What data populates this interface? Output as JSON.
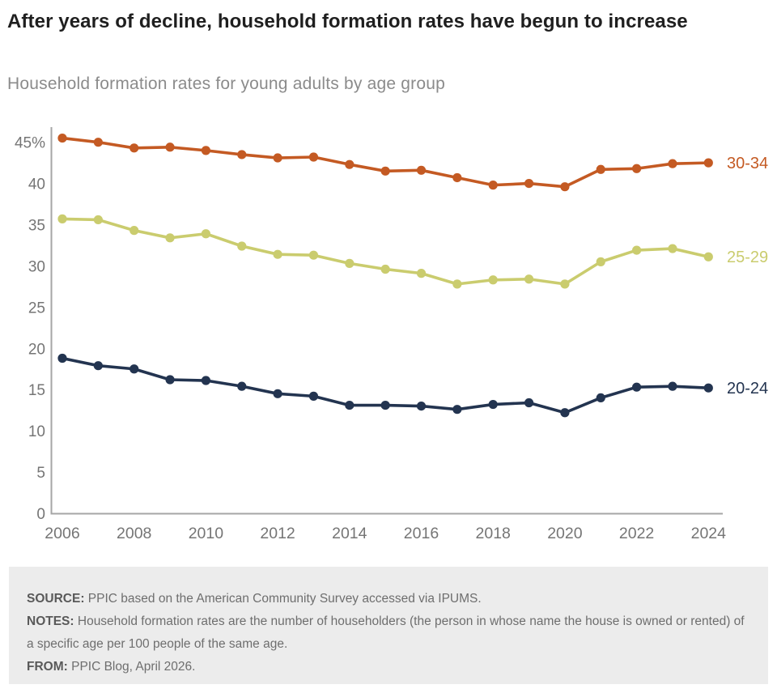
{
  "header": {
    "title": "After years of decline, household formation rates have begun to increase",
    "subtitle": "Household formation rates for young adults by age group"
  },
  "chart_data": {
    "type": "line",
    "x": [
      2006,
      2007,
      2008,
      2009,
      2010,
      2011,
      2012,
      2013,
      2014,
      2015,
      2016,
      2017,
      2018,
      2019,
      2020,
      2021,
      2022,
      2023,
      2024
    ],
    "x_tick_labels": [
      "2006",
      "2008",
      "2010",
      "2012",
      "2014",
      "2016",
      "2018",
      "2020",
      "2022",
      "2024"
    ],
    "y_ticks": [
      {
        "value": 45,
        "label": "45%"
      },
      {
        "value": 40,
        "label": "40"
      },
      {
        "value": 35,
        "label": "35"
      },
      {
        "value": 30,
        "label": "30"
      },
      {
        "value": 25,
        "label": "25"
      },
      {
        "value": 20,
        "label": "20"
      },
      {
        "value": 15,
        "label": "15"
      },
      {
        "value": 10,
        "label": "10"
      },
      {
        "value": 5,
        "label": "5"
      },
      {
        "value": 0,
        "label": "0"
      }
    ],
    "ylim": [
      0,
      45
    ],
    "grid": false,
    "legend_position": "line-end-labels",
    "series": [
      {
        "name": "30-34",
        "color": "#c45a23",
        "values": [
          45.5,
          45.0,
          44.3,
          44.4,
          44.0,
          43.5,
          43.1,
          43.2,
          42.3,
          41.5,
          41.6,
          40.7,
          39.8,
          40.0,
          39.6,
          41.7,
          41.8,
          42.4,
          42.5
        ]
      },
      {
        "name": "25-29",
        "color": "#cacc6e",
        "values": [
          35.7,
          35.6,
          34.3,
          33.4,
          33.9,
          32.4,
          31.4,
          31.3,
          30.3,
          29.6,
          29.1,
          27.8,
          28.3,
          28.4,
          27.8,
          30.5,
          31.9,
          32.1,
          31.1
        ]
      },
      {
        "name": "20-24",
        "color": "#233450",
        "values": [
          18.8,
          17.9,
          17.5,
          16.2,
          16.1,
          15.4,
          14.5,
          14.2,
          13.1,
          13.1,
          13.0,
          12.6,
          13.2,
          13.4,
          12.2,
          14.0,
          15.3,
          15.4,
          15.2
        ]
      }
    ],
    "axis_color": "#a6a6a6",
    "tick_label_color": "#757575"
  },
  "footer": {
    "notes": [
      {
        "label": "SOURCE:",
        "text": "PPIC based on the American Community Survey accessed via IPUMS."
      },
      {
        "label": "NOTES:",
        "text": "Household formation rates are the number of householders (the person in whose name the house is owned or rented) of a specific age per 100 people of the same age."
      },
      {
        "label": "FROM:",
        "text": "PPIC Blog, April 2026."
      }
    ]
  }
}
